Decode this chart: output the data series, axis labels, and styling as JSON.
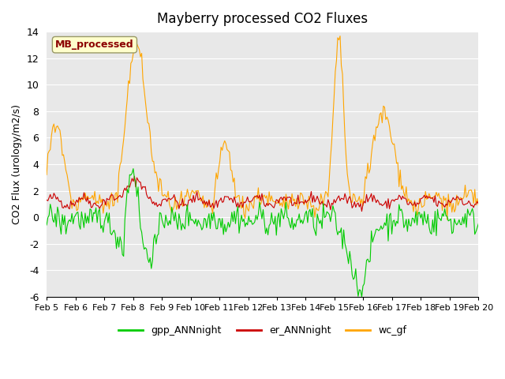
{
  "title": "Mayberry processed CO2 Fluxes",
  "ylabel": "CO2 Flux (urology/m2/s)",
  "ylim": [
    -6,
    14
  ],
  "yticks": [
    -6,
    -4,
    -2,
    0,
    2,
    4,
    6,
    8,
    10,
    12,
    14
  ],
  "bg_color": "#e8e8e8",
  "legend_label": "MB_processed",
  "legend_text_color": "#8b0000",
  "legend_box_color": "#ffffcc",
  "line_colors": {
    "gpp": "#00cc00",
    "er": "#cc0000",
    "wc": "#ffa500"
  },
  "legend_entries": [
    {
      "label": "gpp_ANNnight",
      "color": "#00cc00"
    },
    {
      "label": "er_ANNnight",
      "color": "#cc0000"
    },
    {
      "label": "wc_gf",
      "color": "#ffa500"
    }
  ],
  "n_points": 384,
  "xtick_positions": [
    0,
    1,
    2,
    3,
    4,
    5,
    6,
    7,
    8,
    9,
    10,
    11,
    12,
    13,
    14,
    15,
    16
  ],
  "xtick_labels": [
    "Feb 5",
    "Feb 6",
    "Feb 7",
    "Feb 8",
    "Feb 9",
    "Feb 10",
    "Feb 11",
    "Feb 12",
    "Feb 13",
    "Feb 14",
    "Feb 15",
    "Feb 16",
    "Feb 17",
    "Feb 18",
    "Feb 19",
    "Feb 20",
    ""
  ],
  "seed": 42
}
